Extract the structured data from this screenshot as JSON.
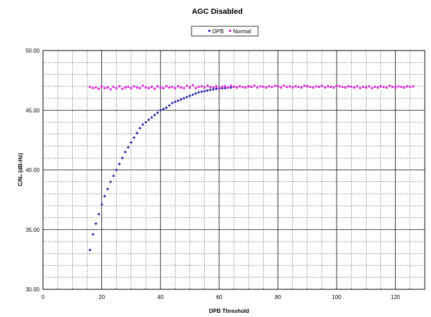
{
  "chart_data": {
    "type": "scatter",
    "title": "AGC Disabled",
    "xlabel": "DPB Threshold",
    "ylabel": "C/N₀ (dB-Hz)",
    "xlim": [
      0,
      130
    ],
    "ylim": [
      30,
      50
    ],
    "x_ticks": [
      "0",
      "20",
      "40",
      "60",
      "80",
      "100",
      "120"
    ],
    "y_ticks": [
      "30.00",
      "35.00",
      "40.00",
      "45.00",
      "50.00"
    ],
    "grid": true,
    "legend_position": "top-center",
    "series": [
      {
        "name": "DPB",
        "color": "#2a2aa8",
        "marker": "diamond",
        "x": [
          16,
          17,
          18,
          19,
          20,
          21,
          22,
          23,
          24,
          25,
          26,
          27,
          28,
          29,
          30,
          31,
          32,
          33,
          34,
          35,
          36,
          37,
          38,
          39,
          40,
          41,
          42,
          43,
          44,
          45,
          46,
          47,
          48,
          49,
          50,
          51,
          52,
          53,
          54,
          55,
          56,
          57,
          58,
          59,
          60,
          61,
          62,
          63,
          64
        ],
        "y": [
          33.3,
          34.6,
          35.5,
          36.3,
          37.1,
          37.8,
          38.4,
          39.0,
          39.5,
          40.0,
          40.5,
          41.0,
          41.5,
          41.9,
          42.3,
          42.7,
          43.1,
          43.5,
          43.8,
          44.0,
          44.2,
          44.4,
          44.6,
          44.8,
          45.0,
          45.1,
          45.2,
          45.4,
          45.6,
          45.7,
          45.8,
          45.9,
          46.0,
          46.1,
          46.2,
          46.3,
          46.4,
          46.5,
          46.55,
          46.6,
          46.65,
          46.7,
          46.75,
          46.8,
          46.8,
          46.85,
          46.85,
          46.9,
          46.9
        ]
      },
      {
        "name": "Normal",
        "color": "#e020e0",
        "marker": "square",
        "x": [
          16,
          17,
          18,
          19,
          20,
          21,
          22,
          23,
          24,
          25,
          26,
          27,
          28,
          29,
          30,
          31,
          32,
          33,
          34,
          35,
          36,
          37,
          38,
          39,
          40,
          41,
          42,
          43,
          44,
          45,
          46,
          47,
          48,
          49,
          50,
          51,
          52,
          53,
          54,
          55,
          56,
          57,
          58,
          59,
          60,
          61,
          62,
          63,
          64,
          65,
          66,
          67,
          68,
          69,
          70,
          71,
          72,
          73,
          74,
          75,
          76,
          77,
          78,
          79,
          80,
          81,
          82,
          83,
          84,
          85,
          86,
          87,
          88,
          89,
          90,
          91,
          92,
          93,
          94,
          95,
          96,
          97,
          98,
          99,
          100,
          101,
          102,
          103,
          104,
          105,
          106,
          107,
          108,
          109,
          110,
          111,
          112,
          113,
          114,
          115,
          116,
          117,
          118,
          119,
          120,
          121,
          122,
          123,
          124,
          125,
          126
        ],
        "y": [
          46.95,
          46.85,
          46.9,
          46.8,
          47.0,
          46.85,
          46.9,
          46.75,
          46.95,
          46.85,
          47.0,
          46.8,
          46.9,
          46.95,
          46.85,
          47.0,
          46.9,
          46.85,
          47.05,
          46.9,
          46.85,
          46.95,
          46.8,
          47.0,
          46.9,
          46.85,
          47.0,
          46.9,
          46.95,
          46.85,
          47.0,
          46.9,
          46.85,
          47.05,
          46.9,
          47.1,
          46.85,
          46.95,
          47.0,
          46.9,
          47.05,
          46.95,
          46.9,
          47.0,
          46.85,
          46.95,
          47.0,
          46.9,
          47.05,
          46.95,
          46.9,
          47.0,
          46.95,
          46.9,
          47.0,
          46.95,
          47.05,
          46.9,
          47.0,
          46.95,
          46.9,
          47.0,
          46.95,
          47.05,
          47.0,
          46.9,
          47.05,
          46.95,
          47.0,
          46.9,
          47.0,
          46.95,
          46.9,
          47.05,
          47.0,
          46.95,
          46.9,
          47.0,
          46.95,
          47.05,
          46.9,
          47.0,
          46.95,
          46.9,
          47.05,
          47.0,
          46.95,
          46.9,
          47.0,
          46.95,
          46.9,
          47.0,
          46.85,
          46.95,
          46.9,
          47.0,
          46.85,
          46.95,
          46.9,
          47.0,
          46.95,
          46.9,
          47.05,
          46.95,
          46.9,
          47.0,
          46.95,
          46.9,
          47.0,
          46.95,
          47.0
        ]
      }
    ]
  }
}
